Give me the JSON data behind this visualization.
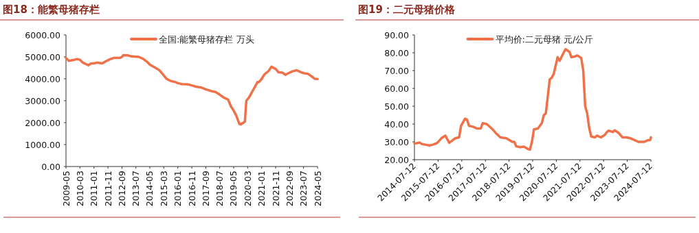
{
  "chart_data": [
    {
      "type": "line",
      "title": "图18：能繁母猪存栏",
      "legend": "top",
      "grid": false,
      "marker": "none",
      "line_style": "solid",
      "xlim": [
        "2009-05",
        "2024-05"
      ],
      "xticks": [
        "2009-05",
        "2010-03",
        "2011-01",
        "2011-11",
        "2012-09",
        "2013-07",
        "2014-05",
        "2015-03",
        "2016-01",
        "2016-11",
        "2017-09",
        "2018-07",
        "2019-05",
        "2020-03",
        "2021-01",
        "2021-11",
        "2022-09",
        "2023-07",
        "2024-05"
      ],
      "ylim": [
        0,
        6000
      ],
      "yticks": [
        {
          "value": 0,
          "label": "0.00"
        },
        {
          "value": 1000,
          "label": "1000.00"
        },
        {
          "value": 2000,
          "label": "2000.00"
        },
        {
          "value": 3000,
          "label": "3000.00"
        },
        {
          "value": 4000,
          "label": "4000.00"
        },
        {
          "value": 5000,
          "label": "5000.00"
        },
        {
          "value": 6000,
          "label": "6000.00"
        }
      ],
      "series": [
        {
          "name": "全国:能繁母猪存栏 万头",
          "color": "#f07048",
          "x": [
            "2009-05",
            "2009-07",
            "2009-11",
            "2010-01",
            "2010-03",
            "2010-05",
            "2010-09",
            "2010-11",
            "2011-01",
            "2011-03",
            "2011-07",
            "2011-09",
            "2011-12",
            "2012-03",
            "2012-08",
            "2012-09",
            "2012-10",
            "2013-01",
            "2013-04",
            "2013-07",
            "2013-09",
            "2013-12",
            "2014-03",
            "2014-05",
            "2014-09",
            "2014-12",
            "2015-03",
            "2015-05",
            "2015-08",
            "2015-11",
            "2016-01",
            "2016-04",
            "2016-08",
            "2016-11",
            "2017-02",
            "2017-06",
            "2017-09",
            "2018-01",
            "2018-04",
            "2018-07",
            "2018-10",
            "2019-01",
            "2019-03",
            "2019-05",
            "2019-07",
            "2019-09",
            "2019-10",
            "2019-12",
            "2020-01",
            "2020-02",
            "2020-04",
            "2020-07",
            "2020-10",
            "2020-11",
            "2021-01",
            "2021-03",
            "2021-06",
            "2021-08",
            "2021-11",
            "2022-01",
            "2022-04",
            "2022-06",
            "2022-08",
            "2022-11",
            "2023-02",
            "2023-06",
            "2023-07",
            "2023-10",
            "2024-01",
            "2024-03",
            "2024-05"
          ],
          "values": [
            4950,
            4820,
            4870,
            4900,
            4870,
            4740,
            4620,
            4700,
            4700,
            4740,
            4700,
            4780,
            4880,
            4950,
            4960,
            5000,
            5080,
            5070,
            5020,
            5010,
            5000,
            4920,
            4780,
            4650,
            4500,
            4380,
            4150,
            4000,
            3900,
            3860,
            3800,
            3760,
            3750,
            3700,
            3640,
            3600,
            3520,
            3440,
            3400,
            3280,
            3140,
            3050,
            2750,
            2550,
            2300,
            1950,
            1920,
            2000,
            2050,
            3000,
            3150,
            3500,
            3850,
            3850,
            4000,
            4200,
            4360,
            4550,
            4450,
            4300,
            4280,
            4180,
            4250,
            4340,
            4390,
            4280,
            4260,
            4230,
            4100,
            4000,
            3990
          ]
        }
      ]
    },
    {
      "type": "line",
      "title": "图19：二元母猪价格",
      "legend": "top",
      "grid": false,
      "marker": "none",
      "line_style": "solid",
      "xlim": [
        "2014-07-12",
        "2024-07-12"
      ],
      "xticks": [
        "2014-07-12",
        "2015-07-12",
        "2016-07-12",
        "2017-07-12",
        "2018-07-12",
        "2019-07-12",
        "2020-07-12",
        "2021-07-12",
        "2022-07-12",
        "2023-07-12",
        "2024-07-12"
      ],
      "ylim": [
        20,
        90
      ],
      "yticks": [
        {
          "value": 20,
          "label": "20.00"
        },
        {
          "value": 30,
          "label": "30.00"
        },
        {
          "value": 40,
          "label": "40.00"
        },
        {
          "value": 50,
          "label": "50.00"
        },
        {
          "value": 60,
          "label": "60.00"
        },
        {
          "value": 70,
          "label": "70.00"
        },
        {
          "value": 80,
          "label": "80.00"
        },
        {
          "value": 90,
          "label": "90.00"
        }
      ],
      "series": [
        {
          "name": "平均价:二元母猪 元/公斤",
          "color": "#f07048",
          "x": [
            "2014-07-12",
            "2014-10",
            "2014-11",
            "2015-03",
            "2015-05",
            "2015-07",
            "2015-09",
            "2015-11",
            "2016-01",
            "2016-04",
            "2016-06",
            "2016-07",
            "2016-09",
            "2016-10",
            "2016-11",
            "2017-01",
            "2017-03",
            "2017-05",
            "2017-06",
            "2017-08",
            "2017-11",
            "2018-01",
            "2018-03",
            "2018-06",
            "2018-09",
            "2018-10",
            "2018-11",
            "2019-01",
            "2019-03",
            "2019-05",
            "2019-06",
            "2019-07",
            "2019-08",
            "2019-10",
            "2019-12",
            "2020-01",
            "2020-02",
            "2020-04",
            "2020-05",
            "2020-06",
            "2020-08",
            "2020-09",
            "2020-11",
            "2020-12",
            "2021-02",
            "2021-03",
            "2021-05",
            "2021-06",
            "2021-08",
            "2021-09",
            "2021-10",
            "2021-11",
            "2021-12",
            "2022-01",
            "2022-03",
            "2022-04",
            "2022-06",
            "2022-08",
            "2022-09",
            "2022-10",
            "2022-12",
            "2023-01",
            "2023-03",
            "2023-05",
            "2023-07",
            "2023-09",
            "2023-11",
            "2024-01",
            "2024-04",
            "2024-06",
            "2024-07",
            "2024-07-12"
          ],
          "values": [
            29,
            29.6,
            28.8,
            28,
            28.5,
            29.5,
            32,
            33.5,
            29.5,
            32,
            32.5,
            39,
            43,
            42.5,
            39,
            38.5,
            37.5,
            37.5,
            40.5,
            40,
            37,
            34.5,
            32.5,
            32,
            30,
            30,
            27.5,
            27,
            27.3,
            26,
            25.6,
            30,
            37,
            37.5,
            40.5,
            45,
            46,
            65,
            66,
            68,
            77.5,
            75.5,
            80,
            82,
            80.5,
            77.5,
            78,
            78.5,
            77,
            70,
            50,
            46,
            38,
            33,
            32.5,
            33.5,
            32.5,
            34,
            35.5,
            36.3,
            35.5,
            36.5,
            35,
            32.5,
            32.5,
            32,
            31,
            30,
            30,
            31,
            31,
            32.5
          ]
        }
      ]
    }
  ]
}
